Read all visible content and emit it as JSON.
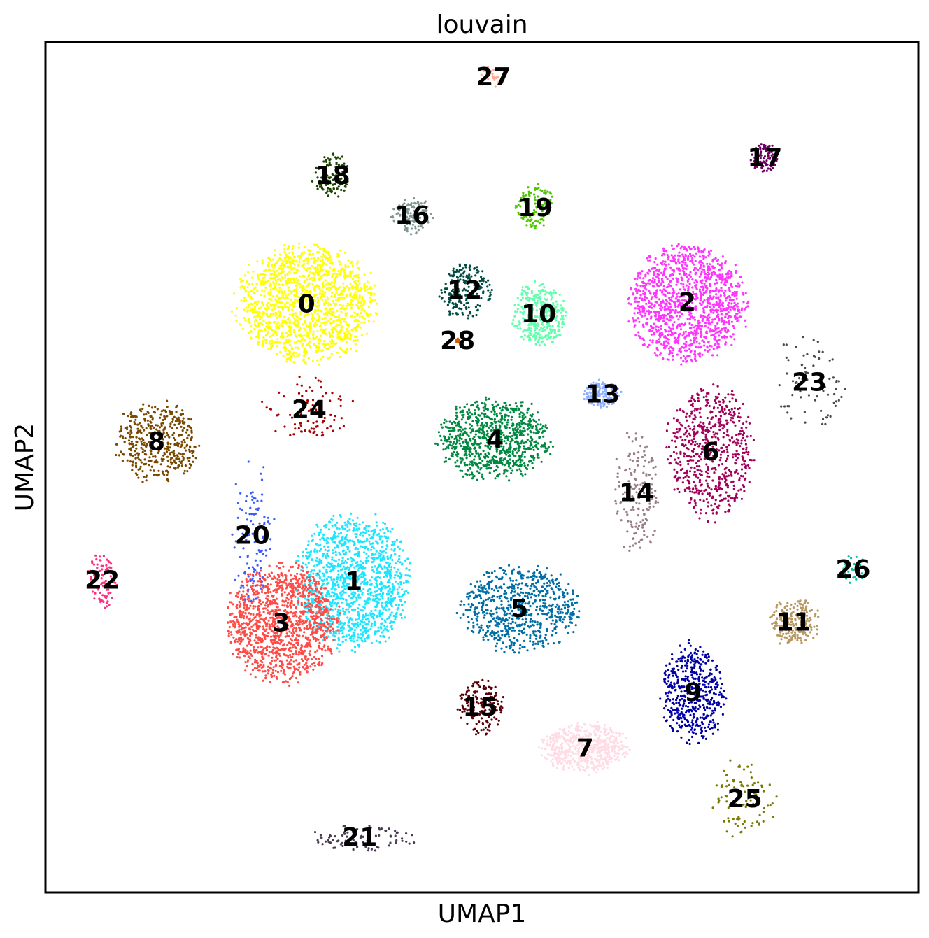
{
  "chart_data": {
    "type": "scatter",
    "title": "louvain",
    "xlabel": "UMAP1",
    "ylabel": "UMAP2",
    "xlim": [
      0,
      100
    ],
    "ylim": [
      0,
      100
    ],
    "grid": false,
    "ticks": false,
    "legend": "on data",
    "clusters": [
      {
        "label": "0",
        "color": "#ffff00",
        "cx": 29.9,
        "cy": 69.2,
        "spread": [
          7.6,
          6.5
        ],
        "density": 1.0
      },
      {
        "label": "1",
        "color": "#1ce6ff",
        "cx": 35.3,
        "cy": 36.6,
        "spread": [
          6.2,
          7.5
        ],
        "density": 0.9
      },
      {
        "label": "2",
        "color": "#ff34ff",
        "cx": 73.5,
        "cy": 69.4,
        "spread": [
          6.4,
          6.6
        ],
        "density": 0.9
      },
      {
        "label": "3",
        "color": "#ff4a46",
        "cx": 27.0,
        "cy": 31.7,
        "spread": [
          6.0,
          6.6
        ],
        "density": 0.9
      },
      {
        "label": "4",
        "color": "#008941",
        "cx": 51.5,
        "cy": 53.3,
        "spread": [
          6.2,
          4.5
        ],
        "density": 0.6
      },
      {
        "label": "5",
        "color": "#006fa6",
        "cx": 54.3,
        "cy": 33.4,
        "spread": [
          6.5,
          4.8
        ],
        "density": 0.5
      },
      {
        "label": "6",
        "color": "#a30059",
        "cx": 76.2,
        "cy": 51.8,
        "spread": [
          4.8,
          7.5
        ],
        "density": 0.45
      },
      {
        "label": "7",
        "color": "#ffdbe5",
        "cx": 61.8,
        "cy": 17.0,
        "spread": [
          4.7,
          2.8
        ],
        "density": 0.4
      },
      {
        "label": "8",
        "color": "#7a4900",
        "cx": 12.7,
        "cy": 53.0,
        "spread": [
          4.5,
          4.5
        ],
        "density": 0.3
      },
      {
        "label": "9",
        "color": "#0000a6",
        "cx": 74.2,
        "cy": 23.5,
        "spread": [
          3.5,
          5.5
        ],
        "density": 0.35
      },
      {
        "label": "10",
        "color": "#63ffac",
        "cx": 56.5,
        "cy": 68.0,
        "spread": [
          3.0,
          3.5
        ],
        "density": 0.25
      },
      {
        "label": "11",
        "color": "#b79762",
        "cx": 85.7,
        "cy": 31.8,
        "spread": [
          2.8,
          2.6
        ],
        "density": 0.15
      },
      {
        "label": "12",
        "color": "#004d43",
        "cx": 48.0,
        "cy": 70.8,
        "spread": [
          2.8,
          3.2
        ],
        "density": 0.15
      },
      {
        "label": "13",
        "color": "#8fb0ff",
        "cx": 63.8,
        "cy": 58.6,
        "spread": [
          2.0,
          1.5
        ],
        "density": 0.1
      },
      {
        "label": "14",
        "color": "#997d87",
        "cx": 67.7,
        "cy": 47.0,
        "spread": [
          2.5,
          7.0
        ],
        "density": 0.12
      },
      {
        "label": "15",
        "color": "#5a0007",
        "cx": 49.8,
        "cy": 21.8,
        "spread": [
          2.5,
          3.2
        ],
        "density": 0.12
      },
      {
        "label": "16",
        "color": "#809693",
        "cx": 42.0,
        "cy": 79.6,
        "spread": [
          2.2,
          2.0
        ],
        "density": 0.08
      },
      {
        "label": "17",
        "color": "#6f0062",
        "cx": 82.4,
        "cy": 86.4,
        "spread": [
          1.6,
          1.6
        ],
        "density": 0.07
      },
      {
        "label": "18",
        "color": "#1b4400",
        "cx": 32.9,
        "cy": 84.3,
        "spread": [
          2.2,
          2.6
        ],
        "density": 0.08
      },
      {
        "label": "19",
        "color": "#4fc601",
        "cx": 56.1,
        "cy": 80.5,
        "spread": [
          2.1,
          2.6
        ],
        "density": 0.08
      },
      {
        "label": "20",
        "color": "#3b5dff",
        "cx": 23.7,
        "cy": 42.0,
        "spread": [
          2.3,
          8.0
        ],
        "density": 0.08
      },
      {
        "label": "21",
        "color": "#4a3b53",
        "cx": 36.0,
        "cy": 6.5,
        "spread": [
          6.0,
          1.5
        ],
        "density": 0.06
      },
      {
        "label": "22",
        "color": "#ff2f80",
        "cx": 6.5,
        "cy": 36.7,
        "spread": [
          1.6,
          3.0
        ],
        "density": 0.07
      },
      {
        "label": "23",
        "color": "#4a4a4a",
        "cx": 87.5,
        "cy": 60.0,
        "spread": [
          4.0,
          5.5
        ],
        "density": 0.05
      },
      {
        "label": "24",
        "color": "#a80000",
        "cx": 30.2,
        "cy": 56.8,
        "spread": [
          5.0,
          3.5
        ],
        "density": 0.06
      },
      {
        "label": "25",
        "color": "#7a7a00",
        "cx": 80.1,
        "cy": 11.0,
        "spread": [
          3.5,
          4.5
        ],
        "density": 0.06
      },
      {
        "label": "26",
        "color": "#00c2a0",
        "cx": 92.5,
        "cy": 38.0,
        "spread": [
          1.5,
          1.5
        ],
        "density": 0.02
      },
      {
        "label": "27",
        "color": "#ffaa92",
        "cx": 51.3,
        "cy": 95.9,
        "spread": [
          1.5,
          1.2
        ],
        "density": 0.02
      },
      {
        "label": "28",
        "color": "#d16100",
        "cx": 47.2,
        "cy": 64.9,
        "spread": [
          0.3,
          0.3
        ],
        "density": 0.005
      }
    ]
  }
}
